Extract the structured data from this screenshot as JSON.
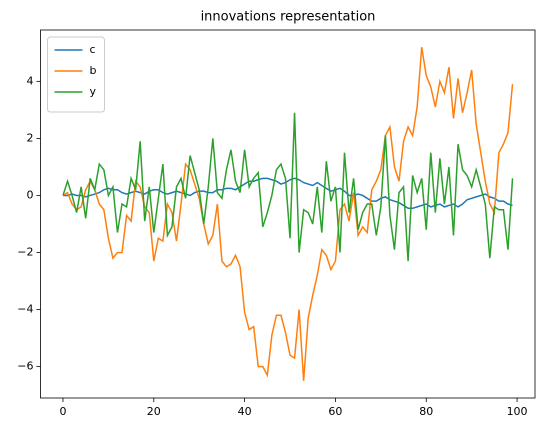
{
  "chart_data": {
    "type": "line",
    "title": "innovations representation",
    "x": [
      0,
      1,
      2,
      3,
      4,
      5,
      6,
      7,
      8,
      9,
      10,
      11,
      12,
      13,
      14,
      15,
      16,
      17,
      18,
      19,
      20,
      21,
      22,
      23,
      24,
      25,
      26,
      27,
      28,
      29,
      30,
      31,
      32,
      33,
      34,
      35,
      36,
      37,
      38,
      39,
      40,
      41,
      42,
      43,
      44,
      45,
      46,
      47,
      48,
      49,
      50,
      51,
      52,
      53,
      54,
      55,
      56,
      57,
      58,
      59,
      60,
      61,
      62,
      63,
      64,
      65,
      66,
      67,
      68,
      69,
      70,
      71,
      72,
      73,
      74,
      75,
      76,
      77,
      78,
      79,
      80,
      81,
      82,
      83,
      84,
      85,
      86,
      87,
      88,
      89,
      90,
      91,
      92,
      93,
      94,
      95,
      96,
      97,
      98,
      99
    ],
    "series": [
      {
        "name": "c",
        "color": "#1f77b4",
        "values": [
          0,
          0,
          0.05,
          0,
          0,
          -0.05,
          0,
          0.05,
          0.1,
          0.2,
          0.25,
          0.2,
          0.2,
          0.1,
          0.05,
          0.1,
          0.15,
          0.1,
          0.05,
          0.15,
          0.2,
          0.2,
          0.1,
          0.05,
          0.1,
          0.15,
          0.1,
          0.05,
          0,
          0.1,
          0.15,
          0.15,
          0.1,
          0.1,
          0.2,
          0.2,
          0.25,
          0.25,
          0.2,
          0.3,
          0.4,
          0.5,
          0.5,
          0.55,
          0.6,
          0.6,
          0.55,
          0.5,
          0.4,
          0.45,
          0.55,
          0.6,
          0.55,
          0.45,
          0.4,
          0.35,
          0.45,
          0.35,
          0.25,
          0.15,
          0.2,
          0.25,
          0.15,
          0,
          0,
          0.05,
          0,
          -0.1,
          -0.2,
          -0.2,
          -0.1,
          -0.05,
          -0.15,
          -0.2,
          -0.25,
          -0.35,
          -0.45,
          -0.45,
          -0.4,
          -0.35,
          -0.3,
          -0.4,
          -0.35,
          -0.3,
          -0.4,
          -0.35,
          -0.3,
          -0.4,
          -0.3,
          -0.15,
          -0.1,
          -0.05,
          0,
          0.05,
          -0.05,
          -0.1,
          -0.2,
          -0.2,
          -0.3,
          -0.35
        ]
      },
      {
        "name": "b",
        "color": "#ff7f0e",
        "values": [
          0,
          0.1,
          -0.3,
          -0.5,
          -0.4,
          0.2,
          0.5,
          0.2,
          -0.3,
          -0.5,
          -1.5,
          -2.2,
          -2.0,
          -2.0,
          -0.7,
          -0.9,
          0.5,
          0.3,
          -0.4,
          -0.6,
          -2.3,
          -1.5,
          -1.6,
          -0.3,
          -0.6,
          -1.6,
          -0.3,
          1.1,
          0.9,
          0.4,
          -0.1,
          -1.0,
          -1.7,
          -1.4,
          -0.3,
          -2.3,
          -2.5,
          -2.4,
          -2.1,
          -2.5,
          -4.1,
          -4.7,
          -4.6,
          -6.0,
          -6.0,
          -6.3,
          -4.9,
          -4.2,
          -4.2,
          -4.8,
          -5.6,
          -5.7,
          -4.0,
          -6.5,
          -4.3,
          -3.5,
          -2.8,
          -1.9,
          -2.1,
          -2.6,
          -2.3,
          -0.5,
          -0.3,
          -0.9,
          0.1,
          -1.4,
          -1.1,
          -1.3,
          0.2,
          0.5,
          0.9,
          2.1,
          2.4,
          1.0,
          0.5,
          1.9,
          2.4,
          2.1,
          3.1,
          5.2,
          4.2,
          3.8,
          3.1,
          4.0,
          3.6,
          4.5,
          2.7,
          4.1,
          2.9,
          3.6,
          4.4,
          2.5,
          1.5,
          0.5,
          -0.3,
          -0.6,
          1.5,
          1.8,
          2.2,
          3.9
        ]
      },
      {
        "name": "y",
        "color": "#2ca02c",
        "values": [
          0,
          0.5,
          0,
          -0.6,
          0.3,
          -0.8,
          0.6,
          0.2,
          1.1,
          0.9,
          0,
          0.3,
          -1.3,
          -0.3,
          -0.4,
          0.6,
          0.2,
          1.9,
          -0.9,
          0.3,
          -1.3,
          -0.1,
          1.1,
          -1.4,
          -1.1,
          0.3,
          0.6,
          -0.1,
          1.4,
          0.8,
          0.2,
          -1.0,
          0.3,
          2.0,
          0.1,
          -0.1,
          0.9,
          1.6,
          0.5,
          0.1,
          1.6,
          0.3,
          0.6,
          0.8,
          -1.1,
          -0.6,
          0,
          0.9,
          1.1,
          0.6,
          -1.5,
          2.9,
          -2.0,
          -0.5,
          -0.6,
          -1.0,
          0.3,
          -1.3,
          1.2,
          -0.2,
          0.3,
          -2.0,
          1.5,
          -0.6,
          0.6,
          -1.2,
          -0.6,
          -0.3,
          -0.3,
          -1.4,
          -0.4,
          2.1,
          -0.7,
          -1.9,
          0.1,
          0.3,
          -2.3,
          0.7,
          0.1,
          0.6,
          -1.2,
          1.5,
          -0.6,
          1.3,
          -0.3,
          1.0,
          -1.4,
          1.8,
          0.9,
          0.7,
          0.3,
          0.9,
          0.3,
          -0.3,
          -2.2,
          -0.4,
          -0.5,
          -0.5,
          -1.9,
          0.6
        ]
      }
    ],
    "xlim": [
      -4.95,
      103.95
    ],
    "xticks": [
      0,
      20,
      40,
      60,
      80,
      100
    ],
    "ylim": [
      -7.1,
      5.8
    ],
    "yticks": [
      {
        "value": -6,
        "label": "−6"
      },
      {
        "value": -4,
        "label": "−4"
      },
      {
        "value": -2,
        "label": "−2"
      },
      0,
      2,
      4
    ],
    "grid": false,
    "legend": "upper left"
  }
}
